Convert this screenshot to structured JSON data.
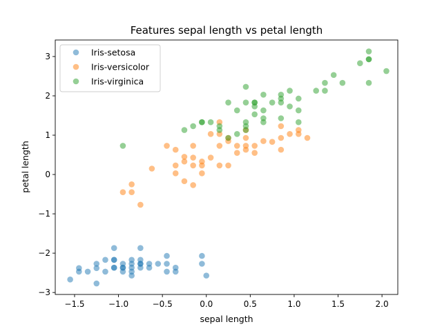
{
  "chart_data": {
    "type": "scatter",
    "title": "Features sepal length vs petal length",
    "xlabel": "sepal length",
    "ylabel": "petal length",
    "xlim": [
      -1.72,
      2.18
    ],
    "ylim": [
      -3.05,
      3.42
    ],
    "xticks": [
      -1.5,
      -1.0,
      -0.5,
      0.0,
      0.5,
      1.0,
      1.5,
      2.0
    ],
    "xtick_labels": [
      "−1.5",
      "−1.0",
      "−0.5",
      "0.0",
      "0.5",
      "1.0",
      "1.5",
      "2.0"
    ],
    "yticks": [
      -3,
      -2,
      -1,
      0,
      1,
      2,
      3
    ],
    "ytick_labels": [
      "−3",
      "−2",
      "−1",
      "0",
      "1",
      "2",
      "3"
    ],
    "grid": false,
    "legend_position": "top-left",
    "marker_alpha": 0.5,
    "series": [
      {
        "name": "Iris-setosa",
        "color": "#1f77b4",
        "points": [
          [
            -1.55,
            -2.67
          ],
          [
            -1.45,
            -2.38
          ],
          [
            -1.45,
            -2.47
          ],
          [
            -1.35,
            -2.47
          ],
          [
            -1.25,
            -2.38
          ],
          [
            -1.25,
            -2.27
          ],
          [
            -1.25,
            -2.77
          ],
          [
            -1.15,
            -2.17
          ],
          [
            -1.15,
            -2.47
          ],
          [
            -1.05,
            -1.87
          ],
          [
            -1.05,
            -2.17
          ],
          [
            -1.05,
            -2.17
          ],
          [
            -1.05,
            -2.37
          ],
          [
            -1.05,
            -2.37
          ],
          [
            -0.95,
            -2.27
          ],
          [
            -0.95,
            -2.37
          ],
          [
            -0.95,
            -2.37
          ],
          [
            -0.95,
            -2.47
          ],
          [
            -0.85,
            -2.17
          ],
          [
            -0.85,
            -2.27
          ],
          [
            -0.85,
            -2.37
          ],
          [
            -0.85,
            -2.47
          ],
          [
            -0.85,
            -2.57
          ],
          [
            -0.75,
            -1.87
          ],
          [
            -0.75,
            -2.17
          ],
          [
            -0.75,
            -2.27
          ],
          [
            -0.75,
            -2.37
          ],
          [
            -0.75,
            -2.27
          ],
          [
            -0.65,
            -2.27
          ],
          [
            -0.65,
            -2.37
          ],
          [
            -0.55,
            -2.27
          ],
          [
            -0.45,
            -2.07
          ],
          [
            -0.45,
            -2.27
          ],
          [
            -0.45,
            -2.47
          ],
          [
            -0.35,
            -2.37
          ],
          [
            -0.35,
            -2.47
          ],
          [
            -0.05,
            -2.07
          ],
          [
            -0.05,
            -2.27
          ],
          [
            0.0,
            -2.57
          ]
        ]
      },
      {
        "name": "Iris-versicolor",
        "color": "#ff7f0e",
        "points": [
          [
            -0.95,
            -0.45
          ],
          [
            -0.85,
            -0.25
          ],
          [
            -0.85,
            -0.45
          ],
          [
            -0.75,
            -0.77
          ],
          [
            -0.62,
            0.15
          ],
          [
            -0.45,
            0.73
          ],
          [
            -0.35,
            0.63
          ],
          [
            -0.35,
            0.23
          ],
          [
            -0.35,
            0.03
          ],
          [
            -0.25,
            0.45
          ],
          [
            -0.25,
            0.33
          ],
          [
            -0.25,
            -0.17
          ],
          [
            -0.15,
            0.73
          ],
          [
            -0.15,
            0.43
          ],
          [
            -0.15,
            0.23
          ],
          [
            -0.15,
            -0.27
          ],
          [
            -0.05,
            0.33
          ],
          [
            -0.05,
            0.23
          ],
          [
            -0.05,
            0.03
          ],
          [
            0.05,
            0.43
          ],
          [
            0.05,
            1.03
          ],
          [
            0.15,
            1.33
          ],
          [
            0.15,
            1.03
          ],
          [
            0.15,
            0.73
          ],
          [
            0.15,
            0.23
          ],
          [
            0.25,
            0.93
          ],
          [
            0.25,
            0.85
          ],
          [
            0.25,
            0.23
          ],
          [
            0.35,
            0.73
          ],
          [
            0.35,
            0.55
          ],
          [
            0.45,
            1.13
          ],
          [
            0.45,
            0.93
          ],
          [
            0.45,
            0.73
          ],
          [
            0.45,
            0.63
          ],
          [
            0.55,
            0.73
          ],
          [
            0.55,
            0.55
          ],
          [
            0.65,
            0.85
          ],
          [
            0.75,
            0.83
          ],
          [
            0.85,
            1.23
          ],
          [
            0.85,
            0.93
          ],
          [
            0.85,
            0.63
          ],
          [
            0.95,
            1.03
          ],
          [
            1.05,
            1.13
          ],
          [
            1.05,
            1.03
          ],
          [
            1.15,
            0.93
          ]
        ]
      },
      {
        "name": "Iris-virginica",
        "color": "#2ca02c",
        "points": [
          [
            -0.95,
            0.73
          ],
          [
            -0.25,
            1.13
          ],
          [
            -0.15,
            1.23
          ],
          [
            -0.05,
            1.33
          ],
          [
            -0.05,
            1.33
          ],
          [
            0.05,
            1.33
          ],
          [
            0.15,
            1.23
          ],
          [
            0.15,
            1.13
          ],
          [
            0.25,
            1.83
          ],
          [
            0.25,
            0.93
          ],
          [
            0.35,
            1.63
          ],
          [
            0.35,
            1.03
          ],
          [
            0.45,
            2.23
          ],
          [
            0.45,
            1.83
          ],
          [
            0.45,
            1.33
          ],
          [
            0.45,
            1.23
          ],
          [
            0.45,
            1.13
          ],
          [
            0.55,
            1.83
          ],
          [
            0.55,
            1.73
          ],
          [
            0.55,
            1.53
          ],
          [
            0.55,
            1.83
          ],
          [
            0.65,
            2.03
          ],
          [
            0.65,
            1.63
          ],
          [
            0.65,
            1.43
          ],
          [
            0.65,
            1.33
          ],
          [
            0.75,
            1.83
          ],
          [
            0.85,
            2.03
          ],
          [
            0.85,
            1.93
          ],
          [
            0.85,
            1.83
          ],
          [
            0.85,
            1.43
          ],
          [
            0.95,
            2.13
          ],
          [
            0.95,
            1.73
          ],
          [
            1.05,
            1.93
          ],
          [
            1.05,
            1.63
          ],
          [
            1.05,
            1.33
          ],
          [
            1.25,
            2.13
          ],
          [
            1.35,
            2.33
          ],
          [
            1.35,
            2.13
          ],
          [
            1.45,
            2.53
          ],
          [
            1.55,
            2.33
          ],
          [
            1.75,
            2.83
          ],
          [
            1.85,
            3.13
          ],
          [
            1.85,
            2.93
          ],
          [
            1.85,
            2.93
          ],
          [
            1.85,
            2.33
          ],
          [
            2.05,
            2.63
          ]
        ]
      }
    ]
  }
}
